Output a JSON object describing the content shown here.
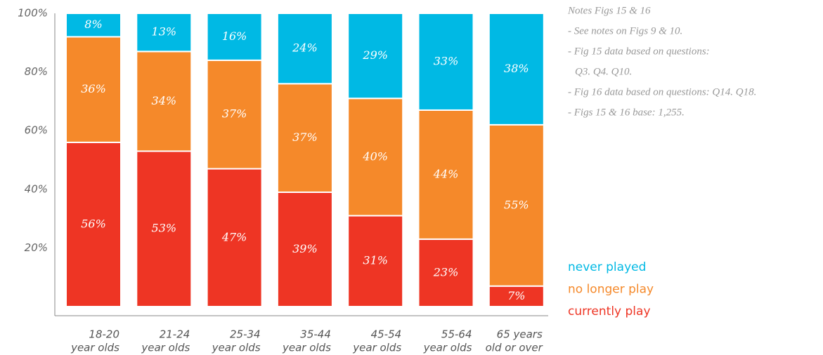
{
  "chart_data": {
    "type": "stacked_bar",
    "categories": [
      [
        "18-20",
        "year olds"
      ],
      [
        "21-24",
        "year olds"
      ],
      [
        "25-34",
        "year olds"
      ],
      [
        "35-44",
        "year olds"
      ],
      [
        "45-54",
        "year olds"
      ],
      [
        "55-64",
        "year olds"
      ],
      [
        "65 years",
        "old or over"
      ]
    ],
    "series": [
      {
        "name": "currently play",
        "color": "#ee3524",
        "values": [
          56,
          53,
          47,
          39,
          31,
          23,
          7
        ],
        "value_labels": [
          "56%",
          "53%",
          "47%",
          "39%",
          "31%",
          "23%",
          "7%"
        ]
      },
      {
        "name": "no longer play",
        "color": "#f5892a",
        "values": [
          36,
          34,
          37,
          37,
          40,
          44,
          55
        ],
        "value_labels": [
          "36%",
          "34%",
          "37%",
          "37%",
          "40%",
          "44%",
          "55%"
        ]
      },
      {
        "name": "never played",
        "color": "#00b9e4",
        "values": [
          8,
          13,
          16,
          24,
          29,
          33,
          38
        ],
        "value_labels": [
          "8%",
          "13%",
          "16%",
          "24%",
          "29%",
          "33%",
          "38%"
        ]
      }
    ],
    "ylim": [
      0,
      100
    ],
    "yticks": [
      {
        "value": 20,
        "label": "20%"
      },
      {
        "value": 40,
        "label": "40%"
      },
      {
        "value": 60,
        "label": "60%"
      },
      {
        "value": 80,
        "label": "80%"
      },
      {
        "value": 100,
        "label": "100%"
      }
    ],
    "legend": "lower right",
    "notes": [
      "Notes Figs 15 & 16",
      "- See notes on Figs 9 & 10.",
      "- Fig 15 data based on questions:",
      "Q3. Q4. Q10.",
      "- Fig 16 data based on questions: Q14. Q18.",
      "- Figs 15 & 16 base: 1,255."
    ]
  }
}
